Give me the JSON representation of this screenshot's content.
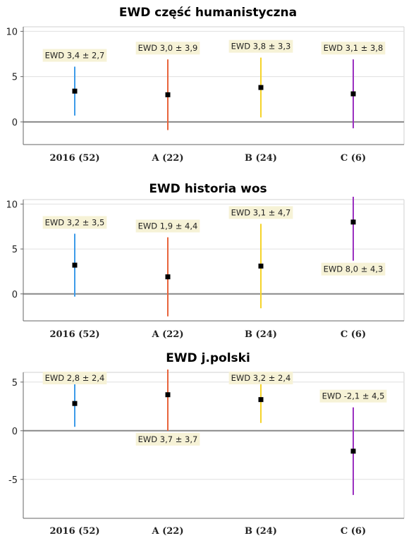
{
  "chart_data": [
    {
      "type": "errorbar",
      "title": "EWD część humanistyczna",
      "categories": [
        "2016 (52)",
        "A (22)",
        "B (24)",
        "C (6)"
      ],
      "values": [
        3.4,
        3.0,
        3.8,
        3.1
      ],
      "errors": [
        2.7,
        3.9,
        3.3,
        3.8
      ],
      "labels": [
        "EWD 3,4 ± 2,7",
        "EWD 3,0 ± 3,9",
        "EWD 3,8 ± 3,3",
        "EWD 3,1 ± 3,8"
      ],
      "label_position": [
        "above",
        "above",
        "above",
        "above"
      ],
      "colors": [
        "#3d9be9",
        "#e8643c",
        "#f5d32a",
        "#9b30c0"
      ],
      "ylim": [
        -2.5,
        10.5
      ],
      "yticks": [
        0,
        5,
        10
      ],
      "ytick_labels": [
        "0",
        "5",
        "10"
      ],
      "grid": true
    },
    {
      "type": "errorbar",
      "title": "EWD historia wos",
      "categories": [
        "2016 (52)",
        "A (22)",
        "B (24)",
        "C (6)"
      ],
      "values": [
        3.2,
        1.9,
        3.1,
        8.0
      ],
      "errors": [
        3.5,
        4.4,
        4.7,
        4.3
      ],
      "labels": [
        "EWD 3,2 ± 3,5",
        "EWD 1,9 ± 4,4",
        "EWD 3,1 ± 4,7",
        "EWD 8,0 ± 4,3"
      ],
      "label_position": [
        "above",
        "above",
        "above",
        "below"
      ],
      "colors": [
        "#3d9be9",
        "#e8643c",
        "#f5d32a",
        "#9b30c0"
      ],
      "ylim": [
        -3,
        10.5
      ],
      "yticks": [
        0,
        5,
        10
      ],
      "ytick_labels": [
        "0",
        "5",
        "10"
      ],
      "grid": true
    },
    {
      "type": "errorbar",
      "title": "EWD j.polski",
      "categories": [
        "2016 (52)",
        "A (22)",
        "B (24)",
        "C (6)"
      ],
      "values": [
        2.8,
        3.7,
        3.2,
        -2.1
      ],
      "errors": [
        2.4,
        3.7,
        2.4,
        4.5
      ],
      "labels": [
        "EWD 2,8 ± 2,4",
        "EWD 3,7 ± 3,7",
        "EWD 3,2 ± 2,4",
        "EWD -2,1 ± 4,5"
      ],
      "label_position": [
        "above",
        "below",
        "above",
        "above"
      ],
      "colors": [
        "#3d9be9",
        "#e8643c",
        "#f5d32a",
        "#9b30c0"
      ],
      "ylim": [
        -9,
        6
      ],
      "yticks": [
        -5,
        0,
        5
      ],
      "ytick_labels": [
        "-5",
        "0",
        "5"
      ],
      "grid": true
    }
  ]
}
